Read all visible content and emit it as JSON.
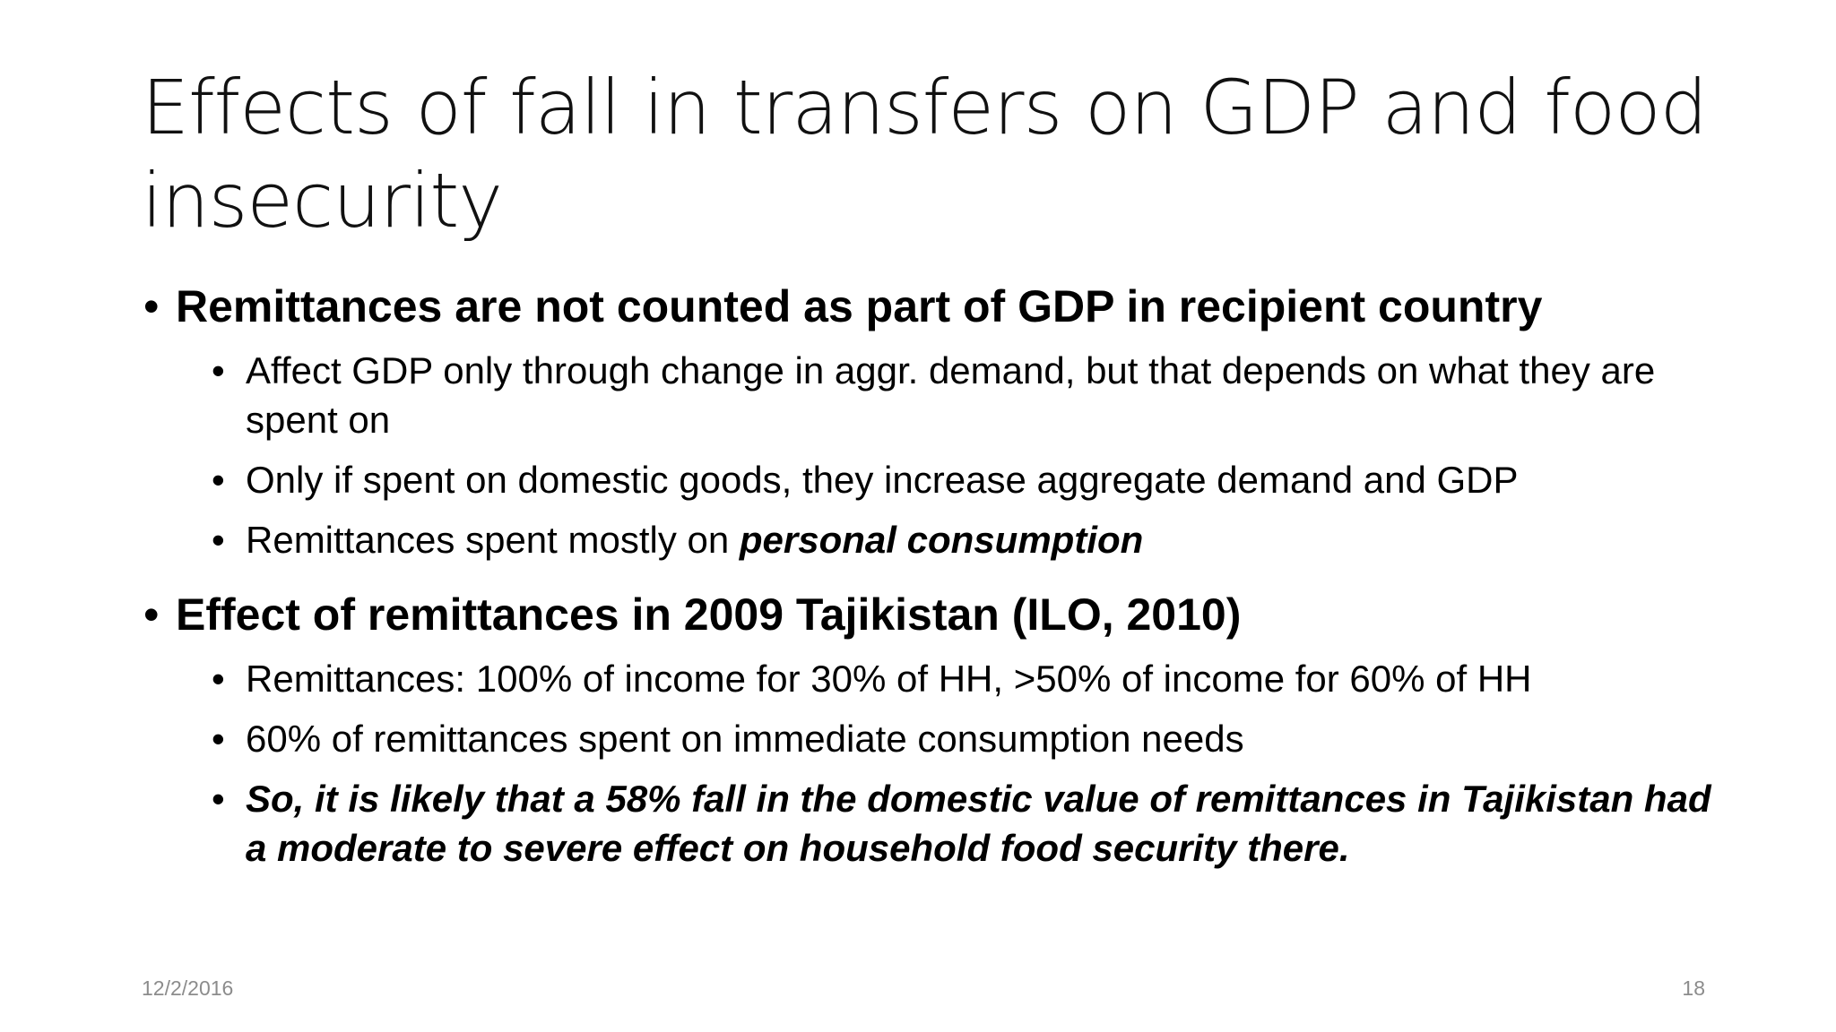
{
  "slide": {
    "title": "Effects of fall in transfers on GDP and food insecurity",
    "bullet_glyph": "•",
    "sections": [
      {
        "heading": "Remittances are not counted as part of GDP in recipient country",
        "items": [
          {
            "text": "Affect GDP only through change in aggr. demand, but that depends on what they are spent on"
          },
          {
            "text": "Only if spent on domestic goods, they increase aggregate demand and GDP"
          },
          {
            "text": "Remittances spent mostly on ",
            "emphasis": "personal consumption"
          }
        ]
      },
      {
        "heading": "Effect of remittances in 2009 Tajikistan (ILO, 2010)",
        "items": [
          {
            "text": "Remittances: 100% of income for 30% of HH, >50% of income for 60% of HH"
          },
          {
            "text": "60% of remittances spent on immediate consumption needs"
          },
          {
            "emphasis": "So, it is likely that a 58% fall in the domestic value of remittances in Tajikistan had a moderate to severe effect on household food security there."
          }
        ]
      }
    ]
  },
  "footer": {
    "date": "12/2/2016",
    "page_number": "18"
  }
}
